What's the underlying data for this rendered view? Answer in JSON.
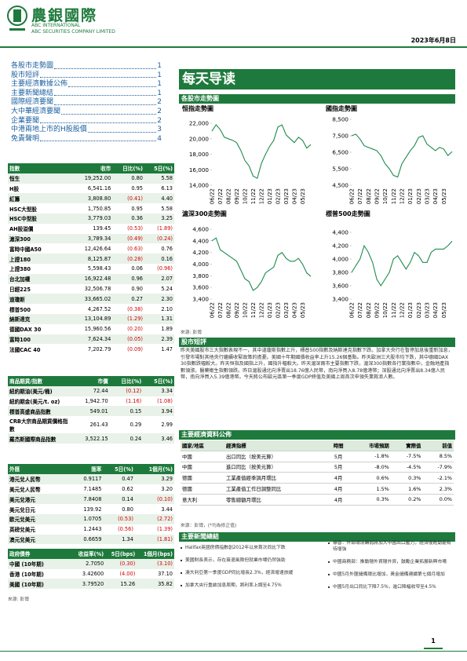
{
  "header": {
    "logo_text": "農銀國際",
    "company_en_1": "ABC INTERNATIONAL",
    "company_en_2": "ABC SECURITIES COMPANY LIMITED",
    "date": "2023年6月8日"
  },
  "toc": [
    {
      "title": "各股市走勢圖",
      "page": "1"
    },
    {
      "title": "股市短評",
      "page": "1"
    },
    {
      "title": "主要經濟數據公佈",
      "page": "1"
    },
    {
      "title": "主要新聞總結",
      "page": "1"
    },
    {
      "title": "國際經濟要聞",
      "page": "2"
    },
    {
      "title": "大中華經濟要聞",
      "page": "2"
    },
    {
      "title": "企業要聞",
      "page": "2"
    },
    {
      "title": "中港兩地上市的H股股價",
      "page": "3"
    },
    {
      "title": "免責聲明",
      "page": "4"
    }
  ],
  "title": "每天导读",
  "index_table": {
    "header": [
      "指數",
      "收市",
      "日比(%)",
      "5日(%)"
    ],
    "rows": [
      [
        "恒生",
        "19,252.00",
        "0.80",
        "5.58"
      ],
      [
        "H股",
        "6,541.16",
        "0.95",
        "6.13"
      ],
      [
        "紅籌",
        "3,808.80",
        "(0.41)",
        "4.40"
      ],
      [
        "HSC大型股",
        "1,750.85",
        "0.95",
        "5.58"
      ],
      [
        "HSC中型股",
        "3,779.03",
        "0.36",
        "3.25"
      ],
      [
        "AH股溢價",
        "139.45",
        "(0.53)",
        "(1.89)"
      ],
      [
        "滬深300",
        "3,789.34",
        "(0.49)",
        "(0.24)"
      ],
      [
        "富時中國A50",
        "12,426.64",
        "(0.63)",
        "0.76"
      ],
      [
        "上證180",
        "8,125.87",
        "(0.28)",
        "0.16"
      ],
      [
        "上證380",
        "5,598.43",
        "0.06",
        "(0.96)"
      ],
      [
        "台北加權",
        "16,922.48",
        "0.96",
        "2.07"
      ],
      [
        "日經225",
        "32,506.78",
        "0.90",
        "5.24"
      ],
      [
        "道瓊斯",
        "33,665.02",
        "0.27",
        "2.30"
      ],
      [
        "標普500",
        "4,267.52",
        "(0.38)",
        "2.10"
      ],
      [
        "納斯達克",
        "13,104.89",
        "(1.29)",
        "1.31"
      ],
      [
        "德國DAX 30",
        "15,960.56",
        "(0.20)",
        "1.89"
      ],
      [
        "富時100",
        "7,624.34",
        "(0.05)",
        "2.39"
      ],
      [
        "法國CAC 40",
        "7,202.79",
        "(0.09)",
        "1.47"
      ]
    ]
  },
  "commodity_table": {
    "header": [
      "商品期貨/指數",
      "市價",
      "日比(%)",
      "5日(%)"
    ],
    "rows": [
      [
        "紐約期油(美元/桶)",
        "72.44",
        "(0.12)",
        "3.34"
      ],
      [
        "紐約期金(美元/t. oz)",
        "1,942.70",
        "(1.16)",
        "(1.08)"
      ],
      [
        "標普高盛商品指數",
        "549.01",
        "0.15",
        "3.94"
      ],
      [
        "CRB大宗商品期貨價格指數",
        "261.43",
        "0.29",
        "2.99"
      ],
      [
        "羅杰斯國際商品指數",
        "3,522.15",
        "0.24",
        "3.46"
      ]
    ]
  },
  "fx_table": {
    "header": [
      "外匯",
      "匯率",
      "5日(%)",
      "1個月(%)"
    ],
    "rows": [
      [
        "港元兌人民幣",
        "0.9117",
        "0.47",
        "3.29"
      ],
      [
        "美元兌人民幣",
        "7.1485",
        "0.62",
        "3.20"
      ],
      [
        "美元兌港元",
        "7.8408",
        "0.14",
        "(0.10)"
      ],
      [
        "美元兌日元",
        "139.92",
        "0.80",
        "3.44"
      ],
      [
        "歐元兌美元",
        "1.0705",
        "(0.53)",
        "(2.72)"
      ],
      [
        "英磅兌美元",
        "1.2443",
        "(0.56)",
        "(1.39)"
      ],
      [
        "澳元兌美元",
        "0.6659",
        "1.34",
        "(1.81)"
      ]
    ]
  },
  "bond_table": {
    "header": [
      "政府債券",
      "收益率(%)",
      "5日(bps)",
      "1個月(bps)"
    ],
    "rows": [
      [
        "中國 (10年期)",
        "2.7050",
        "(0.30)",
        "(3.10)"
      ],
      [
        "香港 (10年期)",
        "3.42600",
        "(4.00)",
        "37.10"
      ],
      [
        "美國 (10年期)",
        "3.79520",
        "15.26",
        "35.82"
      ]
    ]
  },
  "left_source": "來源: 彭博",
  "charts_section": {
    "title": "各股市走勢圖",
    "source": "來源: 彭博"
  },
  "chart_data": [
    {
      "type": "line",
      "title": "恒指走勢圖",
      "color": "#1f8a4c",
      "categories": [
        "06/22",
        null,
        "07/22",
        null,
        "08/22",
        null,
        "09/22",
        null,
        "10/22",
        null,
        "11/22",
        null,
        "12/22",
        null,
        "01/23",
        null,
        "02/23",
        null,
        "03/23",
        null,
        "04/23",
        null,
        "05/23",
        null,
        null
      ],
      "values": [
        21000,
        21800,
        21200,
        20200,
        20000,
        19800,
        19500,
        18500,
        17200,
        16500,
        15200,
        14900,
        16800,
        18000,
        19000,
        19800,
        21500,
        21800,
        20500,
        20000,
        19500,
        20200,
        19800,
        18800,
        19250
      ],
      "ylim": [
        14000,
        22000
      ],
      "yticks": [
        {
          "value": 14000,
          "label": "14,000"
        },
        {
          "value": 16000,
          "label": "16,000"
        },
        {
          "value": 18000,
          "label": "18,000"
        },
        {
          "value": 20000,
          "label": "20,000"
        },
        {
          "value": 22000,
          "label": "22,000"
        }
      ]
    },
    {
      "type": "line",
      "title": "國指走勢圖",
      "color": "#1f8a4c",
      "categories": [
        "06/22",
        null,
        "07/22",
        null,
        "08/22",
        null,
        "09/22",
        null,
        "10/22",
        null,
        "11/22",
        null,
        "12/22",
        null,
        "01/23",
        null,
        "02/23",
        null,
        "03/23",
        null,
        "04/23",
        null,
        "05/23",
        null,
        null
      ],
      "values": [
        7500,
        7600,
        7300,
        6900,
        6800,
        6700,
        6600,
        6300,
        5800,
        5500,
        5100,
        5000,
        5800,
        6200,
        6600,
        6900,
        7400,
        7500,
        7000,
        6800,
        6600,
        6800,
        6700,
        6300,
        6541
      ],
      "ylim": [
        4500,
        8500
      ],
      "yticks": [
        {
          "value": 4500,
          "label": "4,500"
        },
        {
          "value": 5500,
          "label": "5,500"
        },
        {
          "value": 6500,
          "label": "6,500"
        },
        {
          "value": 7500,
          "label": "7,500"
        },
        {
          "value": 8500,
          "label": "8,500"
        }
      ]
    },
    {
      "type": "line",
      "title": "滬深300走勢圖",
      "color": "#1f8a4c",
      "categories": [
        "06/22",
        null,
        "07/22",
        null,
        "08/22",
        null,
        "09/22",
        null,
        "10/22",
        null,
        "11/22",
        null,
        "12/22",
        null,
        "01/23",
        null,
        "02/23",
        null,
        "03/23",
        null,
        "04/23",
        null,
        "05/23",
        null,
        null
      ],
      "values": [
        4400,
        4450,
        4250,
        4200,
        4150,
        4100,
        4050,
        3900,
        3750,
        3700,
        3550,
        3600,
        3700,
        3850,
        3900,
        3950,
        4150,
        4200,
        4100,
        4050,
        4050,
        4100,
        4000,
        3850,
        3789
      ],
      "ylim": [
        3400,
        4600
      ],
      "yticks": [
        {
          "value": 3400,
          "label": "3,400"
        },
        {
          "value": 3600,
          "label": "3,600"
        },
        {
          "value": 3800,
          "label": "3,800"
        },
        {
          "value": 4000,
          "label": "4,000"
        },
        {
          "value": 4200,
          "label": "4,200"
        },
        {
          "value": 4400,
          "label": "4,400"
        },
        {
          "value": 4600,
          "label": "4,600"
        }
      ]
    },
    {
      "type": "line",
      "title": "標普500走勢圖",
      "color": "#1f8a4c",
      "categories": [
        "06/22",
        null,
        "07/22",
        null,
        "08/22",
        null,
        "09/22",
        null,
        "10/22",
        null,
        "11/22",
        null,
        "12/22",
        null,
        "01/23",
        null,
        "02/23",
        null,
        "03/23",
        null,
        "04/23",
        null,
        "05/23",
        null,
        null
      ],
      "values": [
        3800,
        3900,
        4000,
        4200,
        4100,
        3950,
        3700,
        3600,
        3700,
        3800,
        4000,
        4050,
        3950,
        3850,
        3950,
        4100,
        4050,
        3950,
        3950,
        4100,
        4150,
        4150,
        4150,
        4200,
        4267
      ],
      "ylim": [
        3400,
        4400
      ],
      "yticks": [
        {
          "value": 3400,
          "label": "3,400"
        },
        {
          "value": 3600,
          "label": "3,600"
        },
        {
          "value": 3800,
          "label": "3,800"
        },
        {
          "value": 4000,
          "label": "4,000"
        },
        {
          "value": 4200,
          "label": "4,200"
        },
        {
          "value": 4400,
          "label": "4,400"
        }
      ]
    }
  ],
  "commentary": {
    "title": "股市短評",
    "text": "昨天美國股市三大指數表現不一，其中道瓊斯指數上升，標普500指數及納斯達克指數下跌。加拿大央行在暫停加息後重新加息，引發市場對其他央行繼續收緊政策的擔憂。美國十年期國債收益率上升15.26個基點。昨天歐洲三大股市均下跌，其中德國DAX 30指數跌幅較大。昨天恒指及國指上升，國指升幅較大。昨天滬深兩市主要指數下跌，滬深300指數各行業指數中，金融地產指數領漲，醫藥衛生指數領跌。昨日滬股通北向淨賣出18.76億人民幣，南向淨買入8.78億港幣；深股通北向淨賣出8.34億人民幣，南向淨買入5.39億港幣。今天將公布歐元區第一季度GDP終值及美國上周首次申領失業救濟人數。"
  },
  "econ": {
    "title": "主要經濟資料公佈",
    "header": [
      "國家/地區",
      "經濟指標",
      "時間",
      "市場預期",
      "實際值",
      "前值"
    ],
    "rows": [
      [
        "中國",
        "出口同比（按美元算）",
        "5月",
        "-1.8%",
        "-7.5%",
        "8.5%"
      ],
      [
        "中國",
        "進口同比（按美元算）",
        "5月",
        "-8.0%",
        "-4.5%",
        "-7.9%"
      ],
      [
        "德國",
        "工業產值經季調月環比",
        "4月",
        "0.6%",
        "0.3%",
        "-2.1%"
      ],
      [
        "德國",
        "工業產值工作日調整同比",
        "4月",
        "1.5%",
        "1.6%",
        "2.3%"
      ],
      [
        "意大利",
        "零售總額月環比",
        "4月",
        "0.3%",
        "0.2%",
        "0.0%"
      ]
    ],
    "source": "來源：彭博，(*均為修正值)"
  },
  "news": {
    "title": "主要新聞總結",
    "left": [
      "Halifax英國房價指數創2012年以來首次同比下跌",
      "美國財長表示，存在衰退風險但就業市場仍然強勁",
      "澳大利亞第一季度GDP同比增長2.3%，經濟增速放緩",
      "加拿大央行重啟加息周期，將利率上調至4.75%"
    ],
    "right": [
      "標普：外部環境轉弱將加大中國出口壓力，經濟復甦動能有待增強",
      "中國商務部：推動穩外貿穩外資，鼓勵企業拓展新興市場",
      "中國5月外匯儲備環比增加，黃金儲備連續第七個月增加",
      "中國5月出口同比下降7.5%，進口降幅收窄至4.5%"
    ]
  },
  "footer": {
    "page": "1"
  }
}
